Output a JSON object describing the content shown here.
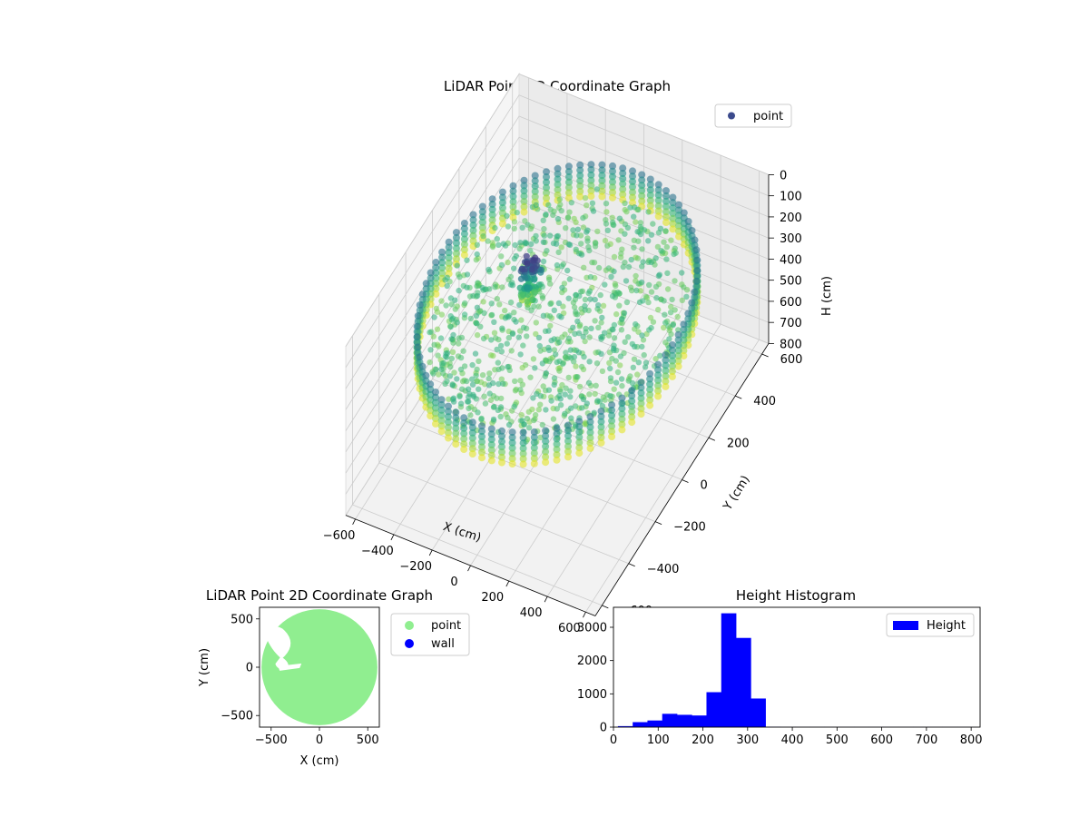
{
  "chart_data": [
    {
      "type": "scatter3d",
      "title": "LiDAR Point 3D Coordinate Graph",
      "xlabel": "X (cm)",
      "ylabel": "Y (cm)",
      "zlabel": "H (cm)",
      "xlim": [
        -650,
        650
      ],
      "ylim": [
        -650,
        650
      ],
      "zlim": [
        0,
        800
      ],
      "z_inverted": true,
      "xticks": [
        -600,
        -400,
        -200,
        0,
        200,
        400,
        600
      ],
      "yticks": [
        -600,
        -400,
        -200,
        0,
        200,
        400,
        600
      ],
      "zticks": [
        0,
        100,
        200,
        300,
        400,
        500,
        600,
        700,
        800
      ],
      "legend": [
        "point"
      ],
      "legend_placement": "top-right",
      "colormap": "viridis",
      "series": [
        {
          "name": "point",
          "ring_radius": 600,
          "ring_height_range": [
            180,
            330
          ],
          "floor_height_range": [
            240,
            290
          ],
          "column_center": [
            -180,
            60
          ],
          "column_height_range": [
            120,
            300
          ]
        }
      ]
    },
    {
      "type": "scatter",
      "title": "LiDAR Point 2D Coordinate Graph",
      "xlabel": "X (cm)",
      "ylabel": "Y (cm)",
      "xlim": [
        -620,
        620
      ],
      "ylim": [
        -620,
        620
      ],
      "xticks": [
        -500,
        0,
        500
      ],
      "yticks": [
        -500,
        0,
        500
      ],
      "legend": [
        "point",
        "wall"
      ],
      "legend_placement": "outside-right",
      "series": [
        {
          "name": "point",
          "color": "#90ee90",
          "shape": "disc",
          "center": [
            0,
            0
          ],
          "radius": 600
        },
        {
          "name": "wall",
          "color": "#0000ff"
        }
      ]
    },
    {
      "type": "bar",
      "title": "Height Histogram",
      "xlabel": "",
      "ylabel": "",
      "xlim": [
        0,
        820
      ],
      "ylim": [
        0,
        3600
      ],
      "xticks": [
        0,
        100,
        200,
        300,
        400,
        500,
        600,
        700,
        800
      ],
      "yticks": [
        0,
        1000,
        2000,
        3000
      ],
      "legend": [
        "Height"
      ],
      "legend_placement": "top-right",
      "color": "#0000ff",
      "bin_width": 33,
      "bin_starts": [
        10,
        43,
        76,
        109,
        142,
        175,
        208,
        241,
        274,
        307,
        340,
        373,
        406,
        439,
        472,
        505,
        538,
        571,
        604,
        637,
        670,
        703,
        736,
        769
      ],
      "values": [
        30,
        150,
        200,
        400,
        370,
        350,
        1050,
        3420,
        2680,
        860,
        10,
        5,
        5,
        5,
        5,
        5,
        5,
        5,
        5,
        5,
        5,
        5,
        5,
        5
      ]
    }
  ]
}
